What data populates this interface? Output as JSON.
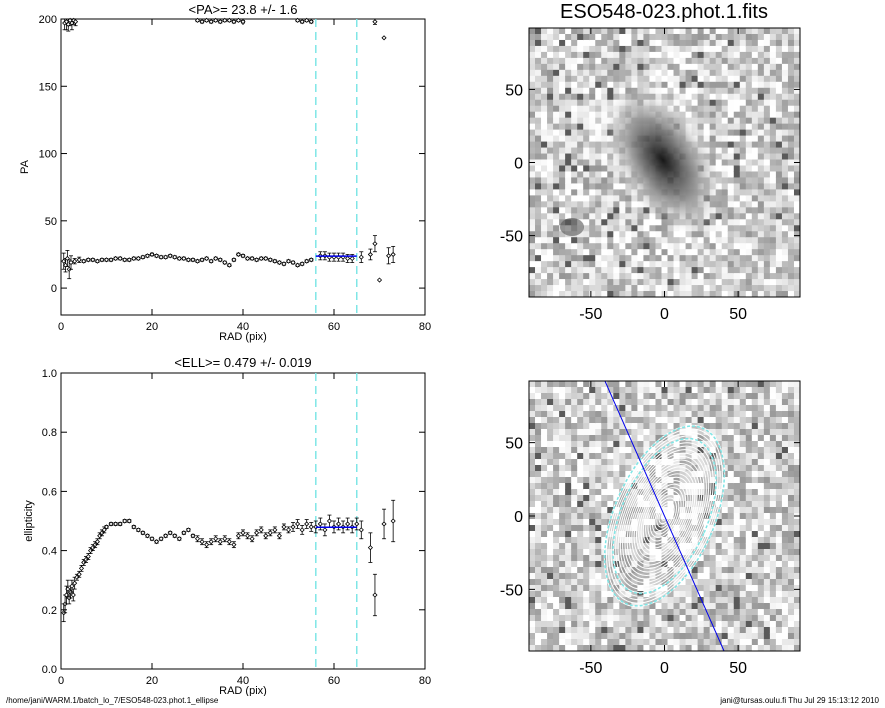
{
  "chart_data": [
    {
      "id": "pa",
      "type": "scatter",
      "title": "<PA>=  23.8 +/-   1.6",
      "xlabel": "RAD (pix)",
      "ylabel": "PA",
      "xlim": [
        0,
        80
      ],
      "ylim": [
        -20,
        200
      ],
      "xticks": [
        0,
        20,
        40,
        60,
        80
      ],
      "yticks": [
        0,
        50,
        100,
        150,
        200
      ],
      "fit_range": [
        56,
        65
      ],
      "mean": 23.8,
      "series": [
        {
          "name": "PA",
          "x": [
            0.6,
            1.0,
            1.4,
            1.8,
            2.2,
            3,
            4,
            5,
            6,
            7,
            8,
            9,
            10,
            11,
            12,
            13,
            14,
            15,
            16,
            17,
            18,
            19,
            20,
            21,
            22,
            23,
            24,
            25,
            26,
            27,
            28,
            29,
            30,
            31,
            32,
            33,
            34,
            35,
            36,
            37,
            38,
            39,
            40,
            41,
            42,
            43,
            44,
            45,
            46,
            47,
            48,
            49,
            50,
            51,
            52,
            53,
            54,
            55,
            57,
            58,
            59,
            60,
            61,
            62,
            63,
            64,
            66,
            68,
            69,
            70,
            72,
            73
          ],
          "y": [
            20,
            17,
            22,
            14,
            19,
            20,
            21,
            20,
            21,
            21,
            20,
            21,
            21,
            21,
            22,
            22,
            21,
            21,
            22,
            22,
            23,
            24,
            25,
            24,
            23,
            23,
            24,
            23,
            22,
            22,
            21,
            21,
            20,
            21,
            22,
            20,
            22,
            21,
            19,
            17,
            21,
            25,
            24,
            22,
            22,
            21,
            22,
            22,
            21,
            20,
            19,
            18,
            20,
            19,
            17,
            18,
            20,
            21,
            24,
            24,
            23,
            23,
            23,
            23,
            22,
            22,
            23,
            25,
            33,
            6,
            24,
            25
          ],
          "err": [
            6,
            5,
            6,
            7,
            5,
            2,
            2,
            1,
            1,
            1,
            1,
            1,
            1,
            1,
            1,
            1,
            1,
            1,
            1,
            1,
            1,
            1,
            1,
            1,
            1,
            1,
            1,
            1,
            1,
            1,
            1,
            1,
            1,
            1,
            1,
            1,
            1,
            1,
            1,
            1,
            1,
            1,
            1,
            1,
            1,
            1,
            1,
            1,
            1,
            1,
            1,
            1,
            1,
            1,
            1,
            1,
            1,
            1,
            3,
            3,
            3,
            3,
            3,
            3,
            3,
            3,
            4,
            4,
            6,
            0,
            6,
            6
          ]
        },
        {
          "name": "PA (wrapped)",
          "x": [
            0.8,
            1.2,
            1.6,
            2.0,
            2.4,
            2.8,
            3.2,
            30,
            31,
            32,
            33,
            34,
            35,
            36,
            37,
            38,
            39,
            40,
            52,
            53,
            54,
            55,
            69,
            71
          ],
          "y": [
            197,
            198,
            196,
            199,
            197,
            199,
            198,
            199,
            198,
            199,
            198,
            199,
            198,
            199,
            199,
            198,
            199,
            198,
            199,
            198,
            199,
            198,
            198,
            186
          ],
          "err": [
            5,
            6,
            5,
            4,
            5,
            3,
            3,
            1,
            1,
            1,
            1,
            1,
            1,
            1,
            1,
            1,
            1,
            1,
            1,
            1,
            1,
            1,
            2,
            0
          ]
        }
      ]
    },
    {
      "id": "ell",
      "type": "scatter",
      "title": "<ELL>= 0.479 +/-  0.019",
      "xlabel": "RAD (pix)",
      "ylabel": "ellipticity",
      "xlim": [
        0,
        80
      ],
      "ylim": [
        0,
        1
      ],
      "xticks": [
        0,
        20,
        40,
        60,
        80
      ],
      "yticks": [
        0.0,
        0.2,
        0.4,
        0.6,
        0.8,
        1.0
      ],
      "ytick_labels": [
        "0.0",
        "0.2",
        "0.4",
        "0.6",
        "0.8",
        "1.0"
      ],
      "fit_range": [
        56,
        65
      ],
      "mean": 0.479,
      "series": [
        {
          "name": "ellipticity",
          "x": [
            0.6,
            0.9,
            1.2,
            1.5,
            1.8,
            2.1,
            2.4,
            2.7,
            3.0,
            3.5,
            4,
            4.5,
            5,
            5.5,
            6,
            6.5,
            7,
            7.5,
            8,
            8.5,
            9,
            9.5,
            10,
            11,
            12,
            13,
            14,
            15,
            16,
            17,
            18,
            19,
            20,
            21,
            22,
            23,
            24,
            25,
            26,
            27,
            28,
            29,
            30,
            31,
            32,
            33,
            34,
            35,
            36,
            37,
            38,
            39,
            40,
            41,
            42,
            43,
            44,
            45,
            46,
            47,
            48,
            49,
            50,
            51,
            52,
            53,
            54,
            55,
            56,
            57,
            58,
            59,
            60,
            61,
            62,
            63,
            64,
            65,
            66,
            68,
            69,
            71,
            73
          ],
          "y": [
            0.19,
            0.22,
            0.25,
            0.27,
            0.24,
            0.26,
            0.28,
            0.25,
            0.29,
            0.31,
            0.32,
            0.34,
            0.36,
            0.37,
            0.38,
            0.4,
            0.41,
            0.42,
            0.43,
            0.45,
            0.46,
            0.47,
            0.48,
            0.49,
            0.49,
            0.49,
            0.5,
            0.5,
            0.48,
            0.47,
            0.46,
            0.45,
            0.44,
            0.43,
            0.44,
            0.45,
            0.46,
            0.45,
            0.44,
            0.46,
            0.47,
            0.45,
            0.44,
            0.43,
            0.42,
            0.43,
            0.44,
            0.43,
            0.44,
            0.43,
            0.42,
            0.45,
            0.46,
            0.45,
            0.44,
            0.46,
            0.47,
            0.45,
            0.46,
            0.47,
            0.45,
            0.48,
            0.47,
            0.48,
            0.49,
            0.47,
            0.49,
            0.48,
            0.48,
            0.49,
            0.47,
            0.5,
            0.48,
            0.49,
            0.48,
            0.49,
            0.48,
            0.49,
            0.47,
            0.41,
            0.25,
            0.49,
            0.5
          ],
          "err": [
            0.03,
            0.03,
            0.03,
            0.03,
            0.02,
            0.02,
            0.02,
            0.02,
            0.02,
            0.01,
            0.01,
            0.01,
            0.01,
            0.01,
            0.01,
            0.01,
            0.01,
            0.01,
            0.01,
            0.01,
            0.01,
            0.01,
            0.005,
            0.005,
            0.005,
            0.005,
            0.005,
            0.005,
            0.005,
            0.005,
            0.005,
            0.005,
            0.005,
            0.005,
            0.005,
            0.005,
            0.005,
            0.005,
            0.005,
            0.005,
            0.005,
            0.005,
            0.01,
            0.01,
            0.01,
            0.01,
            0.01,
            0.01,
            0.01,
            0.01,
            0.01,
            0.01,
            0.01,
            0.01,
            0.01,
            0.01,
            0.01,
            0.01,
            0.01,
            0.01,
            0.01,
            0.01,
            0.01,
            0.015,
            0.015,
            0.015,
            0.015,
            0.015,
            0.02,
            0.02,
            0.02,
            0.02,
            0.02,
            0.02,
            0.02,
            0.02,
            0.02,
            0.02,
            0.03,
            0.05,
            0.07,
            0.05,
            0.07
          ]
        }
      ]
    },
    {
      "id": "image",
      "type": "heatmap",
      "title": "ESO548-023.phot.1.fits",
      "xlim": [
        -92,
        92
      ],
      "ylim": [
        -92,
        92
      ],
      "xticks": [
        -50,
        0,
        50
      ],
      "yticks": [
        -50,
        0,
        50
      ]
    },
    {
      "id": "isophotes",
      "type": "heatmap",
      "title": "",
      "xlim": [
        -92,
        92
      ],
      "ylim": [
        -92,
        92
      ],
      "xticks": [
        -50,
        0,
        50
      ],
      "yticks": [
        -50,
        0,
        50
      ],
      "mean_pa": 23.8,
      "mean_ell": 0.479,
      "fit_range": [
        56,
        65
      ]
    }
  ],
  "footer": {
    "left": "/home/jani/WARM.1/batch_lo_7/ESO548-023.phot.1_ellipse",
    "right": "jani@tursas.oulu.fi  Thu Jul 29 15:13:12 2010"
  },
  "colors": {
    "fit_line": "#0000ee",
    "range_lines": "#7fe6e6",
    "points": "#000000"
  }
}
